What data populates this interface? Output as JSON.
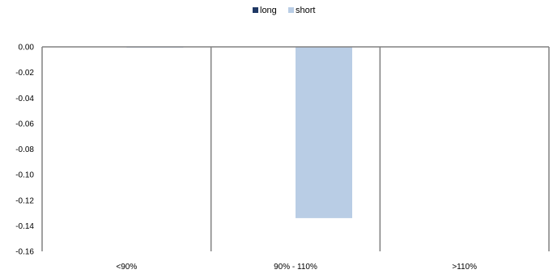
{
  "chart_data": {
    "type": "bar",
    "categories": [
      "<90%",
      "90% - 110%",
      ">110%"
    ],
    "series": [
      {
        "name": "long",
        "color": "#1f3864",
        "values": [
          0.0,
          0.0,
          0.0
        ]
      },
      {
        "name": "short",
        "color": "#b9cde5",
        "values": [
          -0.0005,
          -0.134,
          0.0
        ]
      }
    ],
    "ylim": [
      -0.16,
      0.0
    ],
    "yticks": [
      "0.00",
      "-0.02",
      "-0.04",
      "-0.06",
      "-0.08",
      "-0.10",
      "-0.12",
      "-0.14",
      "-0.16"
    ],
    "xlabel": "",
    "ylabel": "",
    "title": "",
    "legend_position": "top-center",
    "grid": false,
    "axis_color": "#808080"
  }
}
